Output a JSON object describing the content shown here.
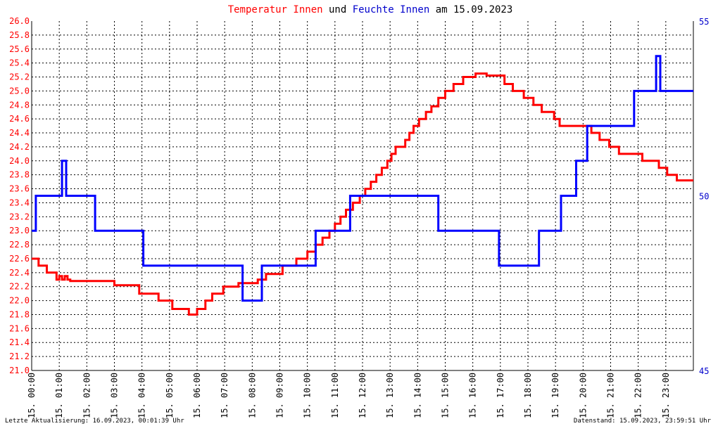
{
  "title_parts": [
    {
      "text": "Temperatur Innen",
      "color": "#ff0000"
    },
    {
      "text": " und ",
      "color": "#000000"
    },
    {
      "text": "Feuchte Innen",
      "color": "#0000cc"
    },
    {
      "text": " am 15.09.2023",
      "color": "#000000"
    }
  ],
  "footer": {
    "left": "Letzte Aktualisierung: 16.09.2023, 00:01:39 Uhr",
    "right": "Datenstand: 15.09.2023, 23:59:51 Uhr"
  },
  "colors": {
    "temp": "#ff0000",
    "hum": "#0000ff",
    "right_axis": "#0000cc",
    "grid": "#000000"
  },
  "chart_data": {
    "type": "line",
    "x_unit": "hours",
    "xlim": [
      0,
      24
    ],
    "x_tick_labels": [
      "15. 00:00",
      "15. 01:00",
      "15. 02:00",
      "15. 03:00",
      "15. 04:00",
      "15. 05:00",
      "15. 06:00",
      "15. 07:00",
      "15. 08:00",
      "15. 09:00",
      "15. 10:00",
      "15. 11:00",
      "15. 12:00",
      "15. 13:00",
      "15. 14:00",
      "15. 15:00",
      "15. 16:00",
      "15. 17:00",
      "15. 18:00",
      "15. 19:00",
      "15. 20:00",
      "15. 21:00",
      "15. 22:00",
      "15. 23:00"
    ],
    "y_left": {
      "lim": [
        21.0,
        26.0
      ],
      "ticks": [
        "21.0",
        "21.2",
        "21.4",
        "21.6",
        "21.8",
        "22.0",
        "22.2",
        "22.4",
        "22.6",
        "22.8",
        "23.0",
        "23.2",
        "23.4",
        "23.6",
        "23.8",
        "24.0",
        "24.2",
        "24.4",
        "24.6",
        "24.8",
        "25.0",
        "25.2",
        "25.4",
        "25.6",
        "25.8",
        "26.0"
      ]
    },
    "y_right": {
      "lim": [
        45,
        55
      ],
      "ticks": [
        "45",
        "50",
        "55"
      ]
    },
    "grid": true,
    "series": [
      {
        "name": "Temperatur Innen",
        "axis": "left",
        "step": true,
        "points": [
          [
            0.0,
            22.6
          ],
          [
            0.25,
            22.5
          ],
          [
            0.55,
            22.4
          ],
          [
            0.9,
            22.3
          ],
          [
            1.0,
            22.35
          ],
          [
            1.1,
            22.3
          ],
          [
            1.2,
            22.35
          ],
          [
            1.3,
            22.3
          ],
          [
            1.4,
            22.28
          ],
          [
            3.0,
            22.22
          ],
          [
            3.9,
            22.1
          ],
          [
            4.6,
            22.0
          ],
          [
            5.1,
            21.88
          ],
          [
            5.7,
            21.8
          ],
          [
            6.0,
            21.88
          ],
          [
            6.3,
            22.0
          ],
          [
            6.55,
            22.1
          ],
          [
            6.95,
            22.2
          ],
          [
            7.5,
            22.25
          ],
          [
            8.2,
            22.3
          ],
          [
            8.5,
            22.38
          ],
          [
            9.1,
            22.5
          ],
          [
            9.6,
            22.6
          ],
          [
            10.0,
            22.7
          ],
          [
            10.3,
            22.8
          ],
          [
            10.55,
            22.9
          ],
          [
            10.8,
            23.0
          ],
          [
            11.0,
            23.1
          ],
          [
            11.2,
            23.2
          ],
          [
            11.4,
            23.3
          ],
          [
            11.65,
            23.4
          ],
          [
            11.9,
            23.5
          ],
          [
            12.1,
            23.6
          ],
          [
            12.3,
            23.7
          ],
          [
            12.5,
            23.8
          ],
          [
            12.7,
            23.9
          ],
          [
            12.9,
            24.0
          ],
          [
            13.05,
            24.1
          ],
          [
            13.2,
            24.2
          ],
          [
            13.55,
            24.3
          ],
          [
            13.7,
            24.4
          ],
          [
            13.85,
            24.5
          ],
          [
            14.05,
            24.6
          ],
          [
            14.3,
            24.7
          ],
          [
            14.5,
            24.78
          ],
          [
            14.75,
            24.9
          ],
          [
            15.0,
            25.0
          ],
          [
            15.3,
            25.1
          ],
          [
            15.65,
            25.2
          ],
          [
            16.1,
            25.25
          ],
          [
            16.5,
            25.22
          ],
          [
            17.15,
            25.1
          ],
          [
            17.45,
            25.0
          ],
          [
            17.85,
            24.9
          ],
          [
            18.2,
            24.8
          ],
          [
            18.5,
            24.7
          ],
          [
            18.95,
            24.6
          ],
          [
            19.15,
            24.5
          ],
          [
            20.3,
            24.4
          ],
          [
            20.6,
            24.3
          ],
          [
            20.95,
            24.2
          ],
          [
            21.3,
            24.1
          ],
          [
            22.15,
            24.0
          ],
          [
            22.75,
            23.9
          ],
          [
            23.05,
            23.8
          ],
          [
            23.4,
            23.72
          ],
          [
            24.0,
            23.72
          ]
        ]
      },
      {
        "name": "Feuchte Innen",
        "axis": "right",
        "step": true,
        "points": [
          [
            0.0,
            49
          ],
          [
            0.15,
            50
          ],
          [
            1.1,
            51
          ],
          [
            1.25,
            50
          ],
          [
            2.3,
            49
          ],
          [
            4.05,
            48
          ],
          [
            7.65,
            47
          ],
          [
            8.35,
            48
          ],
          [
            10.3,
            49
          ],
          [
            11.55,
            50
          ],
          [
            14.75,
            49
          ],
          [
            16.95,
            48
          ],
          [
            18.4,
            49
          ],
          [
            19.2,
            50
          ],
          [
            19.75,
            51
          ],
          [
            20.15,
            52
          ],
          [
            21.85,
            53
          ],
          [
            22.65,
            54
          ],
          [
            22.8,
            53
          ],
          [
            24.0,
            53
          ]
        ]
      }
    ]
  }
}
